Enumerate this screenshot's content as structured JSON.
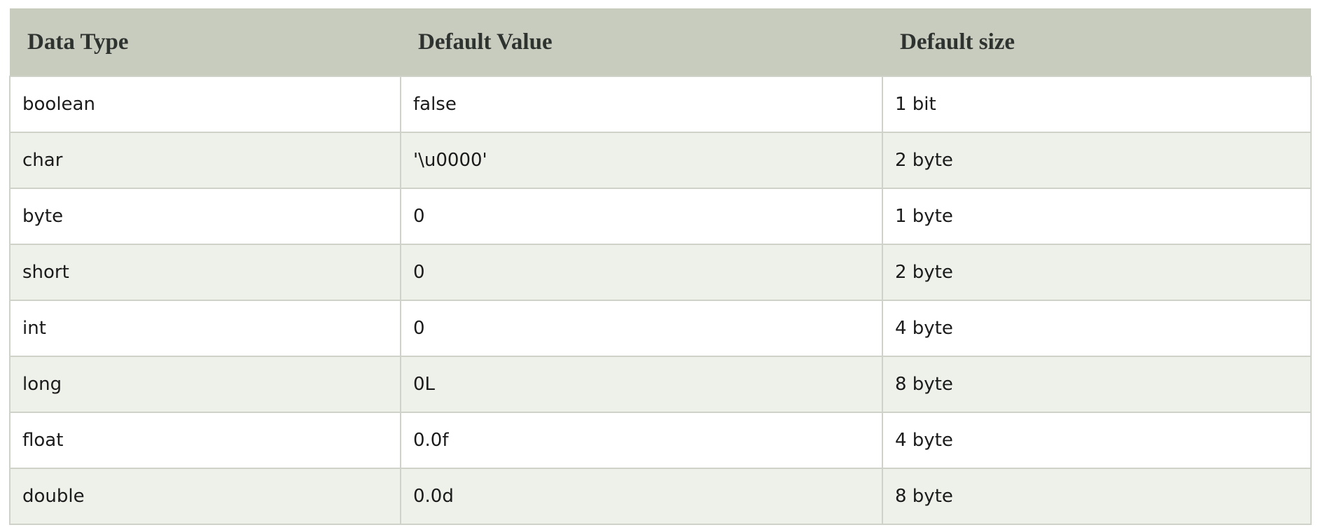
{
  "table": {
    "headers": [
      "Data Type",
      "Default Value",
      "Default size"
    ],
    "rows": [
      [
        "boolean",
        "false",
        "1 bit"
      ],
      [
        "char",
        "'\\u0000'",
        "2 byte"
      ],
      [
        "byte",
        "0",
        "1 byte"
      ],
      [
        "short",
        "0",
        "2 byte"
      ],
      [
        "int",
        "0",
        "4 byte"
      ],
      [
        "long",
        "0L",
        "8 byte"
      ],
      [
        "float",
        "0.0f",
        "4 byte"
      ],
      [
        "double",
        "0.0d",
        "8 byte"
      ]
    ]
  },
  "colors": {
    "header_bg": "#c8ccbf",
    "row_alt_bg": "#eef0ea",
    "border": "#cfd2c9"
  }
}
